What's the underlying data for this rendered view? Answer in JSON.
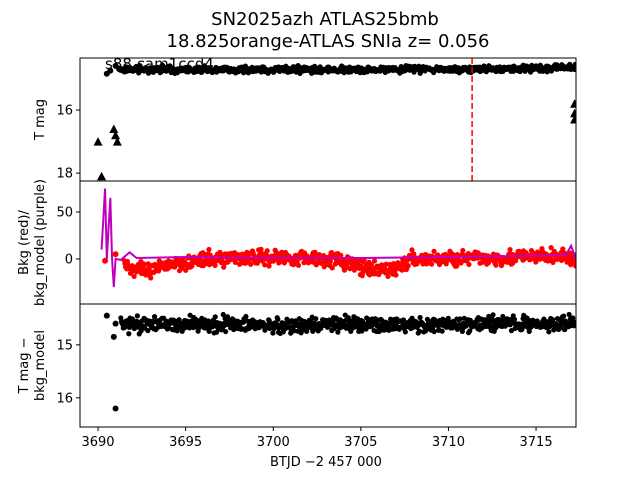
{
  "chart_data": [
    {
      "type": "scatter",
      "title": "SN2025azh  ATLAS25bmb",
      "subtitle": "18.825orange-ATLAS SNIa z= 0.056",
      "annotation": "s88 cam1ccd4",
      "ylabel": "T mag",
      "ylim": [
        18.25,
        14.35
      ],
      "yticks": [
        "16",
        "18"
      ],
      "ytick_values": [
        16,
        18
      ],
      "series": [
        {
          "name": "detections",
          "marker": "circle",
          "color": "#000000",
          "x": [
            3690.5,
            3690.7,
            3691.0,
            3691.2,
            3695,
            3700,
            3705,
            3710,
            3715,
            3717.3
          ],
          "y": [
            14.85,
            14.75,
            14.6,
            14.7,
            14.72,
            14.72,
            14.72,
            14.7,
            14.68,
            14.65
          ]
        },
        {
          "name": "upper limits",
          "marker": "triangle",
          "color": "#000000",
          "x": [
            3690.0,
            3690.2,
            3690.9,
            3691.0,
            3691.1,
            3717.2,
            3717.2,
            3717.2
          ],
          "y": [
            17.0,
            18.1,
            16.6,
            16.8,
            17.0,
            15.8,
            16.1,
            16.3
          ]
        }
      ],
      "vline": {
        "x": 3711.35,
        "color": "#ff0000",
        "style": "dashed"
      }
    },
    {
      "type": "scatter",
      "ylabel": "Bkg (red)/\nbkg_model (purple)",
      "ylabel_lines": [
        "Bkg (red)/",
        "bkg_model (purple)"
      ],
      "ylim": [
        -48,
        83
      ],
      "yticks": [
        "50",
        "0"
      ],
      "ytick_values": [
        50,
        0
      ],
      "series": [
        {
          "name": "Bkg",
          "color": "#ff0000",
          "x": [
            3690.4,
            3691,
            3692,
            3693,
            3694,
            3698,
            3703,
            3704.5,
            3705.5,
            3707,
            3708,
            3712,
            3716.8,
            3717.3
          ],
          "y": [
            -2,
            5,
            -12,
            -14,
            -5,
            2,
            1,
            -5,
            -13,
            -10,
            0,
            1,
            3,
            -5
          ]
        },
        {
          "name": "bkg_model",
          "type": "line",
          "color": "#bf00bf",
          "x": [
            3690.2,
            3690.4,
            3690.5,
            3690.7,
            3690.8,
            3690.9,
            3691.0,
            3691.3,
            3691.8,
            3692.2,
            3695,
            3700,
            3705,
            3710,
            3716.7,
            3717.0,
            3717.3
          ],
          "y": [
            10,
            75,
            0,
            65,
            0,
            -30,
            0,
            -1,
            7,
            1,
            2,
            1,
            1,
            2,
            4,
            14,
            -2
          ]
        }
      ]
    },
    {
      "type": "scatter",
      "ylabel_lines": [
        "T mag −",
        "bkg_model"
      ],
      "ylim": [
        16.55,
        14.23
      ],
      "yticks": [
        "15",
        "16"
      ],
      "ytick_values": [
        15,
        16
      ],
      "series": [
        {
          "name": "diff mag",
          "color": "#000000",
          "x": [
            3690.5,
            3690.9,
            3691.0,
            3691.0,
            3691.5,
            3695,
            3700,
            3705,
            3710,
            3715,
            3717.3
          ],
          "y": [
            14.45,
            14.85,
            16.2,
            14.6,
            14.6,
            14.62,
            14.62,
            14.62,
            14.62,
            14.6,
            14.6
          ]
        }
      ]
    }
  ],
  "xaxis": {
    "label": "BTJD −2 457 000",
    "xlim": [
      3688.97,
      3717.28
    ],
    "ticks": [
      "3690",
      "3695",
      "3700",
      "3705",
      "3710",
      "3715"
    ],
    "tick_values": [
      3690,
      3695,
      3700,
      3705,
      3710,
      3715
    ]
  }
}
